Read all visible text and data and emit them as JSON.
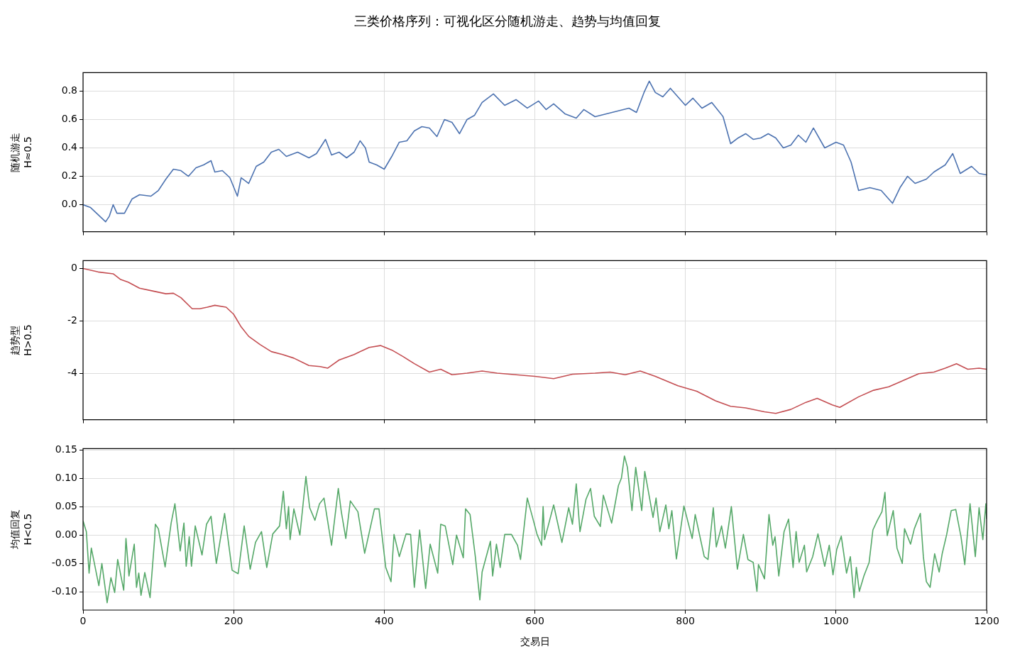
{
  "chart_data": [
    {
      "type": "line",
      "title": "三类价格序列：可视化区分随机游走、趋势与均值回复",
      "ylabel": "随机游走\nH≈0.5",
      "xlim": [
        0,
        1200
      ],
      "ylim": [
        -0.19,
        0.93
      ],
      "xticks": [
        0,
        200,
        400,
        600,
        800,
        1000,
        1200
      ],
      "yticks": [
        {
          "value": 0,
          "label": "0.0"
        },
        {
          "value": 0.2,
          "label": "0.2"
        },
        {
          "value": 0.4,
          "label": "0.4"
        },
        {
          "value": 0.6,
          "label": "0.6"
        },
        {
          "value": 0.8,
          "label": "0.8"
        }
      ],
      "grid": true,
      "tick_labels": "y",
      "x": [
        0,
        10,
        20,
        30,
        35,
        40,
        45,
        55,
        65,
        75,
        90,
        100,
        110,
        120,
        130,
        140,
        150,
        160,
        170,
        175,
        185,
        195,
        205,
        210,
        220,
        230,
        240,
        250,
        260,
        270,
        285,
        300,
        310,
        322,
        330,
        340,
        350,
        360,
        368,
        375,
        380,
        390,
        400,
        410,
        420,
        430,
        440,
        450,
        460,
        470,
        480,
        490,
        500,
        510,
        520,
        530,
        545,
        560,
        575,
        590,
        605,
        615,
        625,
        640,
        655,
        665,
        680,
        695,
        710,
        725,
        735,
        745,
        752,
        760,
        770,
        780,
        790,
        800,
        810,
        822,
        835,
        850,
        860,
        870,
        880,
        890,
        900,
        910,
        920,
        930,
        940,
        950,
        960,
        970,
        985,
        1000,
        1010,
        1020,
        1030,
        1045,
        1060,
        1075,
        1085,
        1095,
        1105,
        1120,
        1130,
        1145,
        1155,
        1165,
        1180,
        1190,
        1200
      ],
      "series": [
        {
          "color": "#4c72b0",
          "values": [
            0.0,
            -0.02,
            -0.07,
            -0.12,
            -0.08,
            0.0,
            -0.06,
            -0.06,
            0.04,
            0.07,
            0.06,
            0.1,
            0.18,
            0.25,
            0.24,
            0.2,
            0.26,
            0.28,
            0.31,
            0.23,
            0.24,
            0.19,
            0.06,
            0.19,
            0.15,
            0.27,
            0.3,
            0.37,
            0.39,
            0.34,
            0.37,
            0.33,
            0.36,
            0.46,
            0.35,
            0.37,
            0.33,
            0.37,
            0.45,
            0.4,
            0.3,
            0.28,
            0.25,
            0.34,
            0.44,
            0.45,
            0.52,
            0.55,
            0.54,
            0.48,
            0.6,
            0.58,
            0.5,
            0.6,
            0.63,
            0.72,
            0.78,
            0.7,
            0.74,
            0.68,
            0.73,
            0.67,
            0.71,
            0.64,
            0.61,
            0.67,
            0.62,
            0.64,
            0.66,
            0.68,
            0.65,
            0.79,
            0.87,
            0.79,
            0.76,
            0.82,
            0.76,
            0.7,
            0.75,
            0.68,
            0.72,
            0.62,
            0.43,
            0.47,
            0.5,
            0.46,
            0.47,
            0.5,
            0.47,
            0.4,
            0.42,
            0.49,
            0.44,
            0.54,
            0.4,
            0.44,
            0.42,
            0.3,
            0.1,
            0.12,
            0.1,
            0.01,
            0.12,
            0.2,
            0.15,
            0.18,
            0.23,
            0.28,
            0.36,
            0.22,
            0.27,
            0.22,
            0.21
          ]
        }
      ]
    },
    {
      "type": "line",
      "ylabel": "趋势型\nH>0.5",
      "xlim": [
        0,
        1200
      ],
      "ylim": [
        -5.75,
        0.3
      ],
      "xticks": [
        0,
        200,
        400,
        600,
        800,
        1000,
        1200
      ],
      "yticks": [
        -4,
        -2,
        0
      ],
      "grid": true,
      "tick_labels": "y",
      "x": [
        0,
        20,
        40,
        50,
        60,
        75,
        90,
        110,
        120,
        130,
        145,
        155,
        165,
        175,
        190,
        200,
        210,
        220,
        235,
        250,
        265,
        280,
        300,
        315,
        325,
        340,
        360,
        380,
        395,
        410,
        425,
        440,
        460,
        475,
        490,
        510,
        530,
        550,
        575,
        600,
        625,
        650,
        680,
        700,
        720,
        740,
        760,
        790,
        815,
        840,
        860,
        880,
        905,
        920,
        940,
        960,
        975,
        995,
        1005,
        1030,
        1050,
        1070,
        1090,
        1110,
        1130,
        1145,
        1160,
        1175,
        1190,
        1200
      ],
      "series": [
        {
          "color": "#c44e52",
          "values": [
            0,
            -0.13,
            -0.2,
            -0.42,
            -0.52,
            -0.75,
            -0.84,
            -0.96,
            -0.94,
            -1.11,
            -1.53,
            -1.53,
            -1.47,
            -1.4,
            -1.47,
            -1.74,
            -2.22,
            -2.58,
            -2.89,
            -3.16,
            -3.27,
            -3.41,
            -3.69,
            -3.73,
            -3.79,
            -3.48,
            -3.27,
            -3.0,
            -2.93,
            -3.1,
            -3.35,
            -3.62,
            -3.94,
            -3.83,
            -4.04,
            -3.98,
            -3.9,
            -3.98,
            -4.04,
            -4.1,
            -4.19,
            -4.02,
            -3.98,
            -3.94,
            -4.04,
            -3.9,
            -4.1,
            -4.46,
            -4.67,
            -5.03,
            -5.24,
            -5.3,
            -5.45,
            -5.51,
            -5.36,
            -5.09,
            -4.94,
            -5.19,
            -5.28,
            -4.88,
            -4.63,
            -4.5,
            -4.25,
            -4.0,
            -3.94,
            -3.79,
            -3.62,
            -3.83,
            -3.79,
            -3.83
          ]
        }
      ]
    },
    {
      "type": "line",
      "ylabel": "均值回复\nH<0.5",
      "xlabel": "交易日",
      "xlim": [
        0,
        1200
      ],
      "ylim": [
        -0.132,
        0.152
      ],
      "xticks": [
        0,
        200,
        400,
        600,
        800,
        1000,
        1200
      ],
      "yticks": [
        {
          "value": -0.1,
          "label": "-0.10"
        },
        {
          "value": -0.05,
          "label": "-0.05"
        },
        {
          "value": 0,
          "label": "0.00"
        },
        {
          "value": 0.05,
          "label": "0.05"
        },
        {
          "value": 0.1,
          "label": "0.10"
        },
        0.15
      ],
      "grid": true,
      "x": [
        0,
        4.4,
        8,
        11,
        21,
        25,
        32,
        37,
        42,
        46,
        54,
        57,
        61,
        68,
        71,
        74,
        77,
        82,
        89,
        95,
        96,
        100,
        109,
        117,
        122,
        129,
        134,
        137,
        141,
        144,
        149,
        158,
        164,
        170,
        177,
        188,
        198,
        206,
        214,
        222,
        229,
        237,
        244,
        252,
        261,
        266,
        270,
        273,
        275,
        280,
        288,
        296,
        301,
        308,
        314,
        320,
        330,
        339,
        343,
        349,
        355,
        365,
        374,
        387,
        393,
        402,
        409,
        413,
        420,
        429,
        435,
        440,
        447,
        455,
        461,
        471,
        475,
        481,
        491,
        496,
        505,
        508,
        514,
        521,
        527,
        530,
        541,
        544,
        549,
        554,
        560,
        569,
        577,
        581,
        590,
        597,
        603,
        609,
        611,
        613,
        625,
        636,
        645,
        650,
        655,
        660,
        668,
        674,
        679,
        687,
        691,
        702,
        711,
        715,
        719,
        723,
        729,
        734,
        742,
        746,
        757,
        761,
        766,
        774,
        778,
        782,
        788,
        798,
        809,
        813,
        825,
        830,
        837,
        841,
        848,
        853,
        861,
        869,
        877,
        883,
        890,
        895,
        897,
        905,
        911,
        916,
        919,
        924,
        931,
        937,
        943,
        947,
        951,
        958,
        961,
        969,
        976,
        985,
        991,
        996,
        1001,
        1007,
        1014,
        1019,
        1024,
        1027,
        1031,
        1037,
        1044,
        1049,
        1055,
        1061,
        1065,
        1068,
        1076,
        1081,
        1088,
        1091,
        1099,
        1104,
        1112,
        1116,
        1120,
        1125,
        1131,
        1137,
        1141,
        1147,
        1153,
        1159,
        1166,
        1171,
        1178,
        1185,
        1190,
        1195,
        1199,
        1200
      ],
      "series": [
        {
          "color": "#55a868",
          "values": [
            0.025,
            0.006,
            -0.067,
            -0.023,
            -0.089,
            -0.05,
            -0.119,
            -0.075,
            -0.101,
            -0.043,
            -0.097,
            -0.006,
            -0.072,
            -0.016,
            -0.092,
            -0.067,
            -0.106,
            -0.066,
            -0.11,
            -0.008,
            0.019,
            0.011,
            -0.056,
            0.021,
            0.055,
            -0.028,
            0.021,
            -0.055,
            -0.003,
            -0.055,
            0.016,
            -0.035,
            0.019,
            0.033,
            -0.05,
            0.038,
            -0.062,
            -0.068,
            0.016,
            -0.06,
            -0.013,
            0.006,
            -0.057,
            0.002,
            0.016,
            0.077,
            0.011,
            0.05,
            -0.008,
            0.046,
            0.0,
            0.103,
            0.048,
            0.026,
            0.055,
            0.065,
            -0.018,
            0.082,
            0.041,
            -0.006,
            0.06,
            0.041,
            -0.032,
            0.046,
            0.046,
            -0.057,
            -0.082,
            0.001,
            -0.038,
            0.002,
            0.001,
            -0.092,
            0.009,
            -0.094,
            -0.016,
            -0.067,
            0.019,
            0.016,
            -0.052,
            0.0,
            -0.04,
            0.046,
            0.036,
            -0.038,
            -0.114,
            -0.065,
            -0.011,
            -0.072,
            -0.016,
            -0.057,
            0.001,
            0.001,
            -0.018,
            -0.043,
            0.065,
            0.031,
            0.001,
            -0.018,
            0.05,
            -0.008,
            0.053,
            -0.013,
            0.048,
            0.019,
            0.09,
            0.006,
            0.063,
            0.082,
            0.033,
            0.015,
            0.07,
            0.021,
            0.087,
            0.1,
            0.139,
            0.119,
            0.043,
            0.119,
            0.043,
            0.112,
            0.031,
            0.065,
            0.006,
            0.053,
            0.011,
            0.043,
            -0.042,
            0.051,
            -0.006,
            0.036,
            -0.038,
            -0.043,
            0.048,
            -0.021,
            0.016,
            -0.023,
            0.05,
            -0.06,
            0.001,
            -0.043,
            -0.048,
            -0.099,
            -0.052,
            -0.077,
            0.036,
            -0.018,
            -0.003,
            -0.072,
            0.006,
            0.028,
            -0.057,
            0.006,
            -0.048,
            -0.018,
            -0.065,
            -0.038,
            0.002,
            -0.055,
            -0.018,
            -0.07,
            -0.025,
            -0.002,
            -0.067,
            -0.038,
            -0.11,
            -0.057,
            -0.099,
            -0.072,
            -0.048,
            0.009,
            0.026,
            0.041,
            0.075,
            -0.001,
            0.043,
            -0.023,
            -0.05,
            0.011,
            -0.016,
            0.011,
            0.038,
            -0.038,
            -0.082,
            -0.092,
            -0.033,
            -0.065,
            -0.033,
            0.001,
            0.043,
            0.045,
            -0.003,
            -0.052,
            0.055,
            -0.038,
            0.048,
            -0.008,
            0.055,
            0.028
          ]
        }
      ]
    }
  ]
}
